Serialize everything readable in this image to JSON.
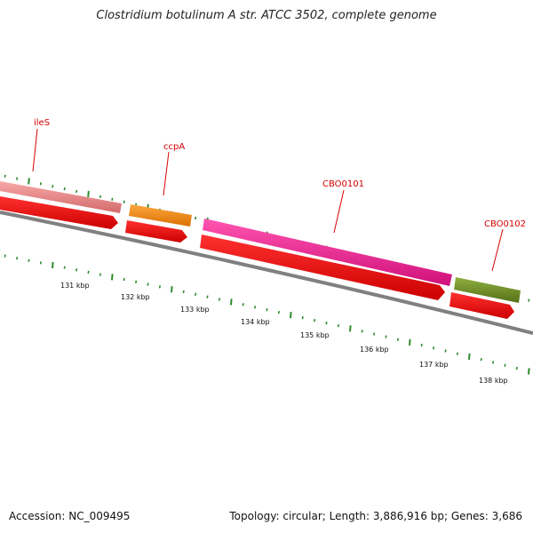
{
  "title": "Clostridium botulinum A str. ATCC 3502, complete genome",
  "footer": {
    "accession": "Accession: NC_009495",
    "summary": "Topology: circular; Length: 3,886,916 bp; Genes: 3,686"
  },
  "colors": {
    "gene_label": "#d40000",
    "cds": "#ff0000",
    "backbone": "#808080",
    "ticks": "#2e8b2e",
    "ileS": "#f08080",
    "ccpA": "#ff8c00",
    "CBO0101": "#ff1493",
    "CBO0102": "#6b8e23"
  },
  "genes": [
    {
      "name": "ileS",
      "color": "#f08080"
    },
    {
      "name": "ccpA",
      "color": "#ff8c00"
    },
    {
      "name": "CBO0101",
      "color": "#ff1493"
    },
    {
      "name": "CBO0102",
      "color": "#6b8e23"
    }
  ],
  "scale_labels": [
    "131 kbp",
    "132 kbp",
    "133 kbp",
    "134 kbp",
    "135 kbp",
    "136 kbp",
    "137 kbp",
    "138 kbp"
  ]
}
